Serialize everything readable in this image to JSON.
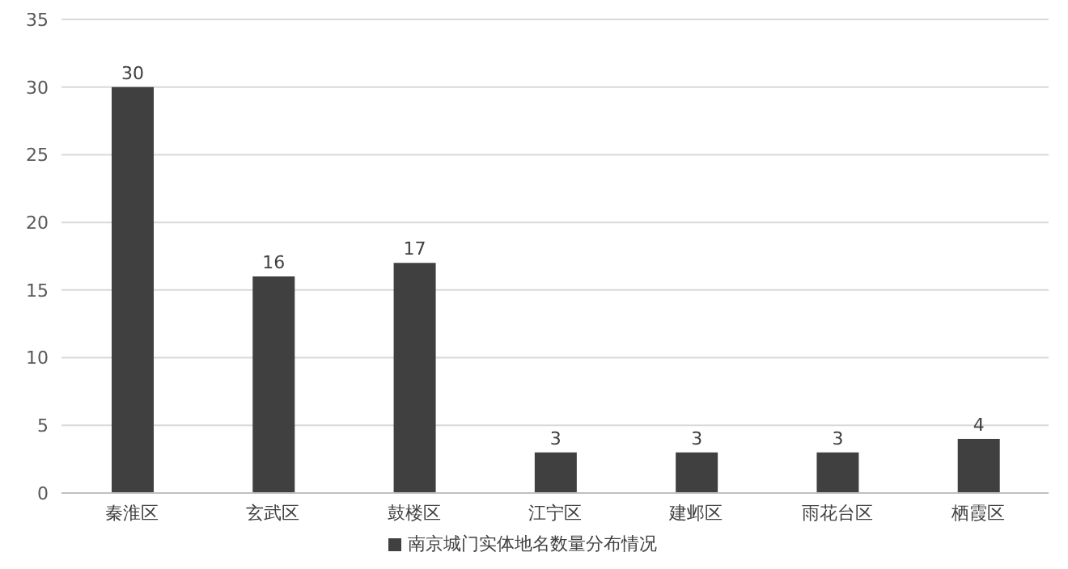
{
  "chart_data": {
    "type": "bar",
    "categories": [
      "秦淮区",
      "玄武区",
      "鼓楼区",
      "江宁区",
      "建邺区",
      "雨花台区",
      "栖霞区"
    ],
    "series": [
      {
        "name": "南京城门实体地名数量分布情况",
        "color": "#404040",
        "values": [
          30,
          16,
          17,
          3,
          3,
          3,
          4
        ]
      }
    ],
    "ylim": [
      0,
      35
    ],
    "yticks": [
      0,
      5,
      10,
      15,
      20,
      25,
      30,
      35
    ],
    "grid": "y",
    "legend": "bottom",
    "data_labels": true
  }
}
